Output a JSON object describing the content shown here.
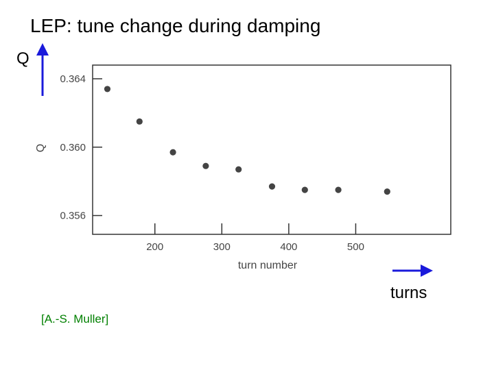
{
  "slide": {
    "title": "LEP: tune change during damping",
    "q_label": "Q",
    "turns_label": "turns",
    "credit": "[A.-S. Muller]"
  },
  "colors": {
    "arrow": "#1a1adb",
    "points": "#444444",
    "frame": "#333333",
    "credit": "#008000"
  },
  "chart_data": {
    "type": "scatter",
    "title": "",
    "xlabel": "turn number",
    "ylabel": "Q",
    "xlim": [
      107,
      642
    ],
    "ylim": [
      0.3549,
      0.3648
    ],
    "x_ticks": [
      200,
      300,
      400,
      500
    ],
    "x_tick_labels": [
      "200",
      "300",
      "400",
      "500"
    ],
    "y_ticks": [
      0.364,
      0.36,
      0.356
    ],
    "y_tick_labels": [
      "0.364",
      "0.360",
      "0.356"
    ],
    "grid": false,
    "x": [
      129,
      177,
      227,
      276,
      325,
      375,
      424,
      474,
      547
    ],
    "y": [
      0.3634,
      0.3615,
      0.3597,
      0.3589,
      0.3587,
      0.3577,
      0.3575,
      0.3575,
      0.3574
    ]
  }
}
